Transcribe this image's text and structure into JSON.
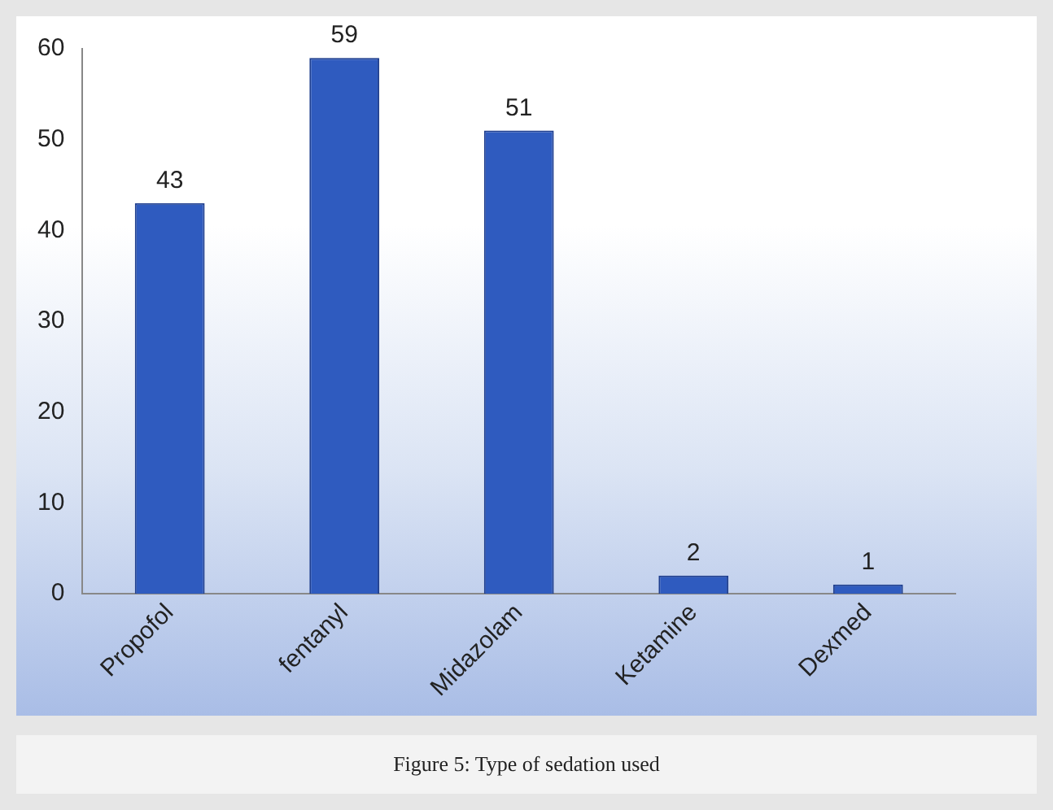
{
  "chart_data": {
    "type": "bar",
    "categories": [
      "Propofol",
      "fentanyl",
      "Midazolam",
      "Ketamine",
      "Dexmed"
    ],
    "values": [
      43,
      59,
      51,
      2,
      1
    ],
    "color": "#2f5bbf",
    "ylim": [
      0,
      60
    ],
    "yticks": [
      0,
      10,
      20,
      30,
      40,
      50,
      60
    ],
    "grid": false,
    "legend": false,
    "data_labels": true,
    "annotations": [
      "Figure 5: Type of sedation used"
    ]
  }
}
